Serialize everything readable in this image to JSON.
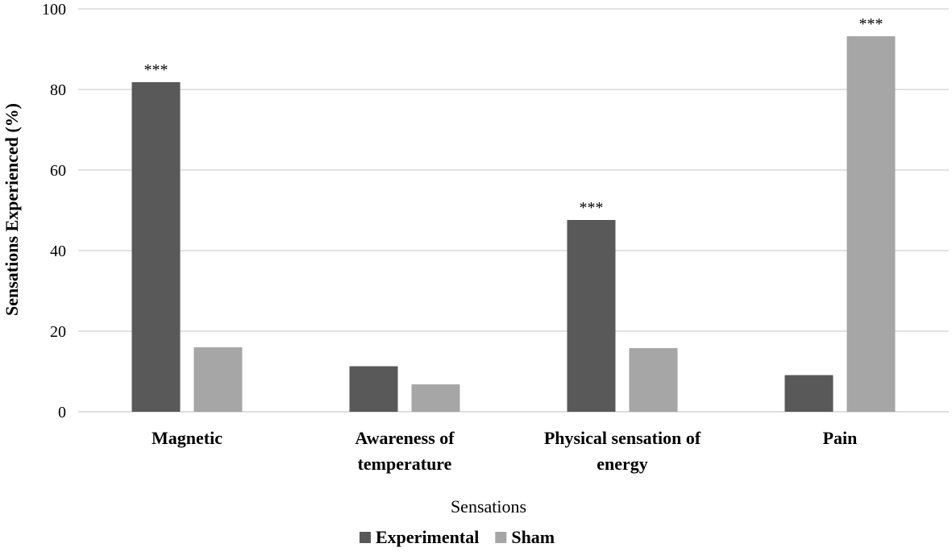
{
  "chart_data": {
    "type": "bar",
    "categories": [
      [
        "Magnetic"
      ],
      [
        "Awareness of",
        "temperature"
      ],
      [
        "Physical sensation of",
        "energy"
      ],
      [
        "Pain"
      ]
    ],
    "series": [
      {
        "name": "Experimental",
        "color": "#595959",
        "values": [
          81.8,
          11.3,
          47.6,
          9.1
        ],
        "annotations": [
          "***",
          "",
          "***",
          ""
        ]
      },
      {
        "name": "Sham",
        "color": "#a6a6a6",
        "values": [
          16,
          6.8,
          15.8,
          93.2
        ],
        "annotations": [
          "",
          "",
          "",
          "***"
        ]
      }
    ],
    "xlabel": "Sensations",
    "ylabel": "Sensations Experienced (%)",
    "ylim": [
      0,
      100
    ],
    "yticks": [
      0,
      20,
      40,
      60,
      80,
      100
    ],
    "grid": true,
    "legend": "bottom-center",
    "gridColor": "#d9d9d9"
  }
}
